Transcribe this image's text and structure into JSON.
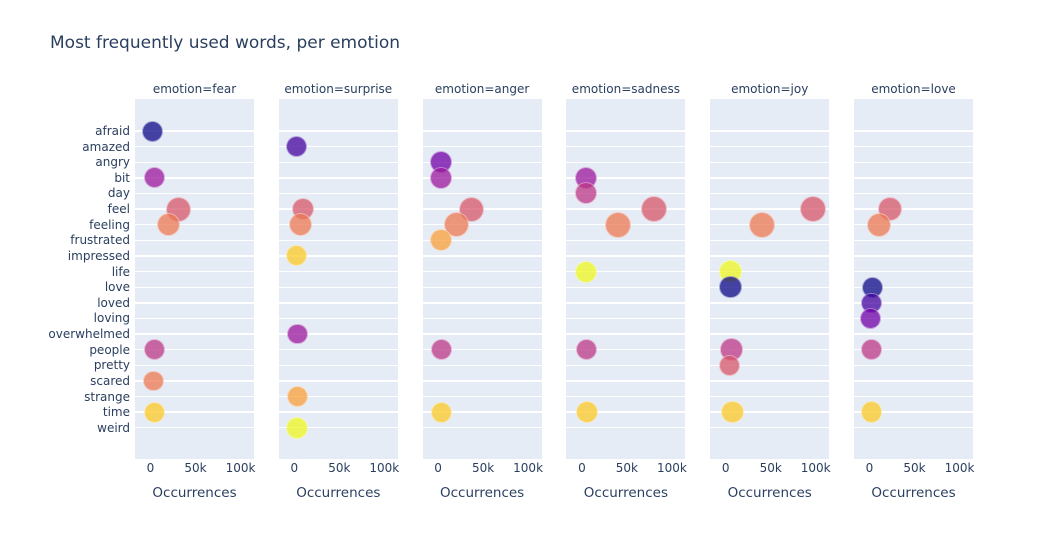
{
  "title": "Most frequently used words, per emotion",
  "colors": {
    "paper_bg": "#ffffff",
    "plot_bg": "#e5ecf6",
    "grid": "#ffffff",
    "text": "#2a3f5f",
    "palette_plasma10": [
      "#0d0887",
      "#46039f",
      "#7201a8",
      "#9c179e",
      "#bd3786",
      "#d8576b",
      "#ed7953",
      "#fb9f3a",
      "#fdca26",
      "#f0f921"
    ]
  },
  "chart_data": {
    "type": "scatter",
    "title": "Most frequently used words, per emotion",
    "xlabel": "Occurrences",
    "ylabel": "",
    "xlim": [
      -17000,
      115000
    ],
    "grid": "horizontal-only",
    "legend": "none",
    "marker_opacity": 0.75,
    "categories": [
      "afraid",
      "amazed",
      "angry",
      "bit",
      "day",
      "feel",
      "feeling",
      "frustrated",
      "impressed",
      "life",
      "love",
      "loved",
      "loving",
      "overwhelmed",
      "people",
      "pretty",
      "scared",
      "strange",
      "time",
      "weird"
    ],
    "x_ticks": [
      {
        "value": 0,
        "label": "0"
      },
      {
        "value": 50000,
        "label": "50k"
      },
      {
        "value": 100000,
        "label": "100k"
      }
    ],
    "facets": [
      {
        "emotion": "fear",
        "label": "emotion=fear",
        "points": [
          {
            "word": "afraid",
            "value": 2500,
            "size": 21
          },
          {
            "word": "bit",
            "value": 4000,
            "size": 21
          },
          {
            "word": "feel",
            "value": 31000,
            "size": 25
          },
          {
            "word": "feeling",
            "value": 20000,
            "size": 23.5
          },
          {
            "word": "people",
            "value": 4000,
            "size": 21
          },
          {
            "word": "scared",
            "value": 3500,
            "size": 20.5
          },
          {
            "word": "time",
            "value": 4000,
            "size": 21
          }
        ]
      },
      {
        "emotion": "surprise",
        "label": "emotion=surprise",
        "points": [
          {
            "word": "amazed",
            "value": 3000,
            "size": 21
          },
          {
            "word": "feel",
            "value": 10000,
            "size": 22
          },
          {
            "word": "feeling",
            "value": 7000,
            "size": 23
          },
          {
            "word": "impressed",
            "value": 3000,
            "size": 21
          },
          {
            "word": "overwhelmed",
            "value": 3500,
            "size": 20.5
          },
          {
            "word": "strange",
            "value": 3500,
            "size": 21
          },
          {
            "word": "weird",
            "value": 3500,
            "size": 22
          }
        ]
      },
      {
        "emotion": "anger",
        "label": "emotion=anger",
        "points": [
          {
            "word": "angry",
            "value": 3500,
            "size": 22
          },
          {
            "word": "bit",
            "value": 3500,
            "size": 22
          },
          {
            "word": "feel",
            "value": 37500,
            "size": 25
          },
          {
            "word": "feeling",
            "value": 21000,
            "size": 25
          },
          {
            "word": "frustrated",
            "value": 3000,
            "size": 22
          },
          {
            "word": "people",
            "value": 4000,
            "size": 21
          },
          {
            "word": "time",
            "value": 4000,
            "size": 21
          }
        ]
      },
      {
        "emotion": "sadness",
        "label": "emotion=sadness",
        "points": [
          {
            "word": "bit",
            "value": 5000,
            "size": 22
          },
          {
            "word": "day",
            "value": 5000,
            "size": 22
          },
          {
            "word": "feel",
            "value": 80000,
            "size": 26
          },
          {
            "word": "feeling",
            "value": 40000,
            "size": 26
          },
          {
            "word": "life",
            "value": 5000,
            "size": 22
          },
          {
            "word": "people",
            "value": 5000,
            "size": 21
          },
          {
            "word": "time",
            "value": 6000,
            "size": 22
          }
        ]
      },
      {
        "emotion": "joy",
        "label": "emotion=joy",
        "points": [
          {
            "word": "feel",
            "value": 97000,
            "size": 26.5
          },
          {
            "word": "feeling",
            "value": 40000,
            "size": 26
          },
          {
            "word": "life",
            "value": 5500,
            "size": 22.5
          },
          {
            "word": "love",
            "value": 5500,
            "size": 22.5
          },
          {
            "word": "people",
            "value": 6500,
            "size": 22.5
          },
          {
            "word": "pretty",
            "value": 4500,
            "size": 21.5
          },
          {
            "word": "time",
            "value": 7500,
            "size": 22.5
          }
        ]
      },
      {
        "emotion": "love",
        "label": "emotion=love",
        "points": [
          {
            "word": "feel",
            "value": 23000,
            "size": 24
          },
          {
            "word": "feeling",
            "value": 10000,
            "size": 24
          },
          {
            "word": "love",
            "value": 3000,
            "size": 21
          },
          {
            "word": "loved",
            "value": 2000,
            "size": 20.5
          },
          {
            "word": "loving",
            "value": 1000,
            "size": 21
          },
          {
            "word": "people",
            "value": 2000,
            "size": 20.5
          },
          {
            "word": "time",
            "value": 2000,
            "size": 21.5
          }
        ]
      }
    ]
  }
}
